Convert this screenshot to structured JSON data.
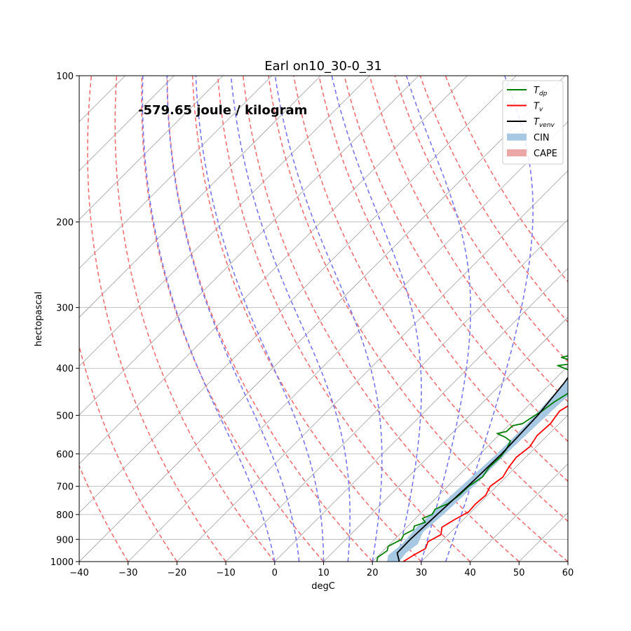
{
  "chart_data": {
    "type": "line",
    "title": "Earl on10_30-0_31",
    "annotation": "-579.65 joule / kilogram",
    "xlabel": "degC",
    "ylabel": "hectopascal",
    "xlim": [
      -40,
      60
    ],
    "ylim": [
      1000,
      100
    ],
    "y_scale": "log",
    "x_ticks": [
      "−40",
      "−30",
      "−20",
      "−10",
      "0",
      "10",
      "20",
      "30",
      "40",
      "50",
      "60"
    ],
    "y_ticks": [
      "100",
      "200",
      "300",
      "400",
      "500",
      "600",
      "700",
      "800",
      "900",
      "1000"
    ],
    "grid": true,
    "legend_position": "top-right",
    "legend": [
      {
        "key": "tdp",
        "label_main": "T",
        "label_sub": "dp",
        "color": "#008000",
        "kind": "line"
      },
      {
        "key": "tv",
        "label_main": "T",
        "label_sub": "v",
        "color": "#ff0000",
        "kind": "line"
      },
      {
        "key": "tvenv",
        "label_main": "T",
        "label_sub": "venv",
        "color": "#000000",
        "kind": "line"
      },
      {
        "key": "cin",
        "label_main": "CIN",
        "label_sub": "",
        "color": "#a6c8e3",
        "kind": "patch"
      },
      {
        "key": "cape",
        "label_main": "CAPE",
        "label_sub": "",
        "color": "#eba6a6",
        "kind": "patch"
      }
    ],
    "series": [
      {
        "name": "Tdp",
        "color": "#008000",
        "points": [
          [
            20.9,
            1000
          ],
          [
            20.2,
            980
          ],
          [
            20.8,
            950
          ],
          [
            20.1,
            930
          ],
          [
            21.4,
            900
          ],
          [
            20.9,
            880
          ],
          [
            21.9,
            860
          ],
          [
            21.3,
            845
          ],
          [
            22.8,
            830
          ],
          [
            21.4,
            815
          ],
          [
            22.6,
            800
          ],
          [
            22.1,
            780
          ],
          [
            23.6,
            760
          ],
          [
            24.2,
            730
          ],
          [
            24.3,
            700
          ],
          [
            25.2,
            670
          ],
          [
            24.6,
            640
          ],
          [
            24.8,
            610
          ],
          [
            24.5,
            590
          ],
          [
            23.6,
            565
          ],
          [
            21.8,
            555
          ],
          [
            19.3,
            545
          ],
          [
            20.8,
            540
          ],
          [
            20.9,
            525
          ],
          [
            22.5,
            520
          ],
          [
            23.1,
            505
          ],
          [
            23.9,
            490
          ],
          [
            24.5,
            470
          ],
          [
            25.6,
            450
          ],
          [
            25.3,
            430
          ],
          [
            27.8,
            425
          ],
          [
            24.8,
            420
          ],
          [
            23.4,
            410
          ],
          [
            21.6,
            405
          ],
          [
            17.8,
            395
          ],
          [
            21.6,
            390
          ],
          [
            16.9,
            380
          ],
          [
            20.5,
            370
          ],
          [
            19.2,
            360
          ],
          [
            20.6,
            340
          ],
          [
            21.2,
            320
          ],
          [
            21.6,
            300
          ],
          [
            22.4,
            280
          ],
          [
            22.7,
            260
          ],
          [
            21.9,
            240
          ],
          [
            19.8,
            225
          ],
          [
            17.2,
            212
          ],
          [
            15.4,
            200
          ]
        ]
      },
      {
        "name": "Tv",
        "color": "#ff0000",
        "points": [
          [
            26.3,
            1000
          ],
          [
            27.1,
            970
          ],
          [
            28.2,
            940
          ],
          [
            27.3,
            910
          ],
          [
            28.5,
            880
          ],
          [
            27.2,
            850
          ],
          [
            28.2,
            820
          ],
          [
            29.5,
            790
          ],
          [
            29.3,
            760
          ],
          [
            29.6,
            730
          ],
          [
            28.7,
            700
          ],
          [
            29.4,
            670
          ],
          [
            28.6,
            640
          ],
          [
            28.1,
            610
          ],
          [
            28.7,
            580
          ],
          [
            27.9,
            550
          ],
          [
            28.2,
            520
          ],
          [
            27.5,
            490
          ],
          [
            29.2,
            460
          ],
          [
            28.1,
            440
          ],
          [
            30.2,
            430
          ],
          [
            28.6,
            420
          ],
          [
            28.8,
            400
          ],
          [
            28.1,
            380
          ],
          [
            27.1,
            360
          ],
          [
            26.5,
            340
          ],
          [
            26.6,
            320
          ],
          [
            25.7,
            300
          ],
          [
            25.1,
            280
          ],
          [
            24.2,
            260
          ],
          [
            22.6,
            240
          ],
          [
            21.5,
            220
          ],
          [
            20.2,
            200
          ]
        ]
      },
      {
        "name": "Tvenv",
        "color": "#000000",
        "points": [
          [
            25.5,
            1000
          ],
          [
            23.3,
            960
          ],
          [
            23.2,
            900
          ],
          [
            23.6,
            800
          ],
          [
            24.1,
            700
          ],
          [
            24.4,
            600
          ],
          [
            23.9,
            500
          ],
          [
            22.7,
            430
          ],
          [
            21.2,
            380
          ],
          [
            20.5,
            350
          ],
          [
            16.8,
            300
          ],
          [
            13.5,
            250
          ],
          [
            10.7,
            200
          ]
        ]
      }
    ],
    "cin_region": {
      "left_points": [
        [
          23.0,
          1000
        ],
        [
          21.9,
          970
        ],
        [
          22.5,
          920
        ],
        [
          22.0,
          850
        ],
        [
          22.4,
          760
        ],
        [
          22.9,
          680
        ],
        [
          23.4,
          600
        ],
        [
          23.4,
          520
        ],
        [
          22.7,
          430
        ],
        [
          21.2,
          380
        ],
        [
          20.5,
          350
        ],
        [
          16.8,
          300
        ],
        [
          13.5,
          250
        ],
        [
          10.7,
          200
        ]
      ],
      "right_points": [
        [
          25.5,
          1000
        ],
        [
          25.1,
          960
        ],
        [
          25.7,
          920
        ],
        [
          24.3,
          870
        ],
        [
          24.9,
          800
        ],
        [
          25.3,
          700
        ],
        [
          25.3,
          600
        ],
        [
          25.8,
          500
        ],
        [
          26.4,
          430
        ],
        [
          25.0,
          350
        ],
        [
          24.6,
          300
        ],
        [
          23.6,
          250
        ],
        [
          21.9,
          210
        ],
        [
          21.8,
          200
        ]
      ]
    },
    "reference_lines": {
      "dry_adiabats_surface_temp_C": [
        -30,
        -20,
        -10,
        0,
        10,
        20,
        30,
        40,
        50,
        60,
        70,
        80,
        90,
        100,
        110,
        120,
        130
      ],
      "moist_adiabats_surface_temp_C": [
        0,
        5,
        10,
        15,
        20,
        25,
        30,
        35
      ],
      "isotherm_skew_lines": true,
      "parcel_dewpoint_guide_color": "#7a3fb0"
    }
  }
}
